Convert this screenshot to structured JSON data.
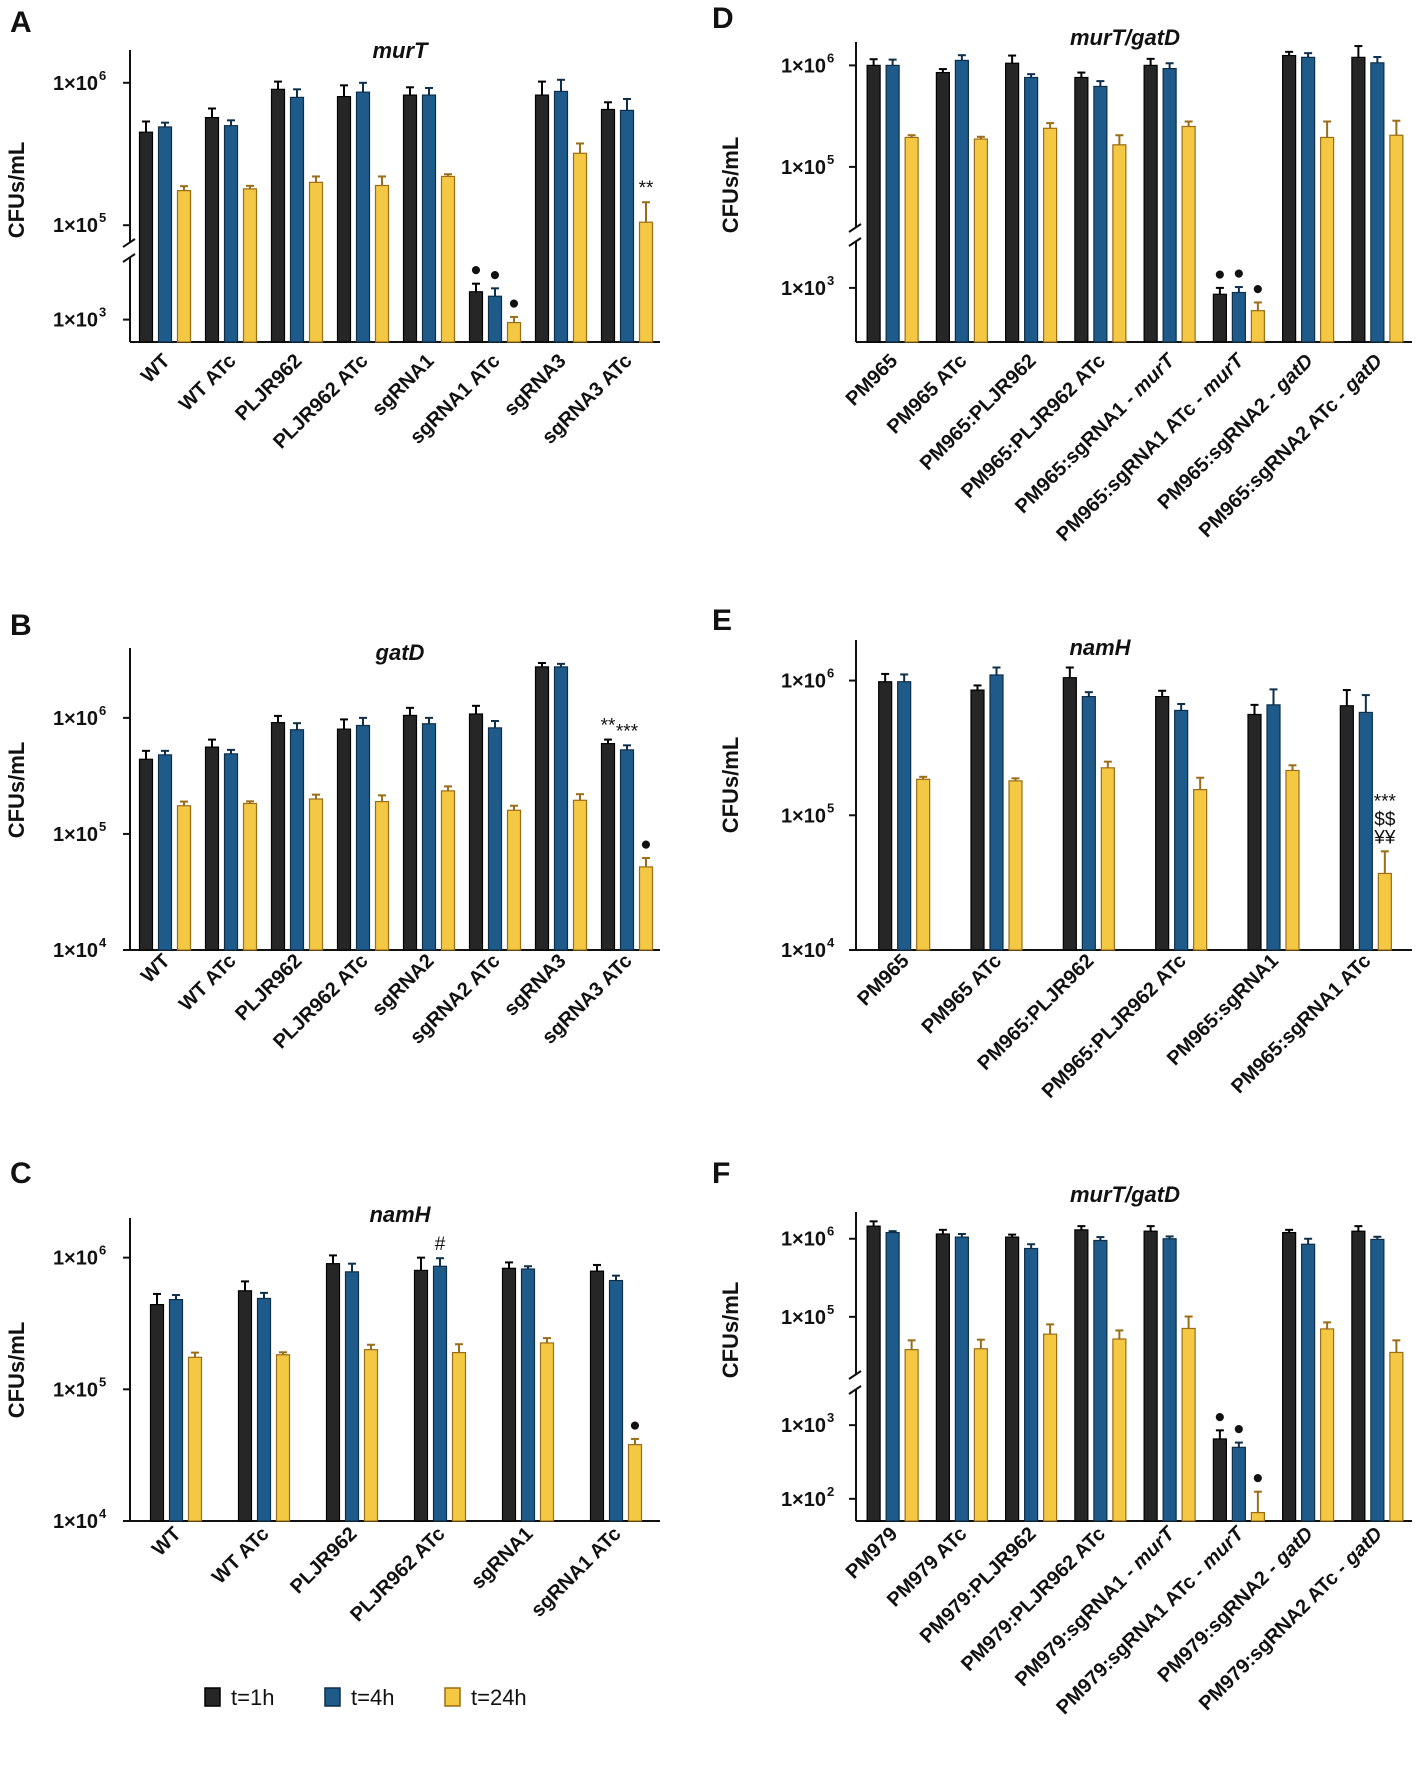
{
  "colors": {
    "t1": "#262626",
    "t4": "#1f5b8a",
    "t24": "#f4c843",
    "t24_edge": "#9a6d16",
    "axis": "#111111"
  },
  "legend": [
    {
      "label": "t=1h",
      "color": "#262626"
    },
    {
      "label": "t=4h",
      "color": "#1f5b8a"
    },
    {
      "label": "t=24h",
      "color": "#f4c843"
    }
  ],
  "series_names": [
    "t=1h",
    "t=4h",
    "t=24h"
  ],
  "chart_data": [
    {
      "letter": "A",
      "type": "bar",
      "title": "murT",
      "italic_title": true,
      "ylabel": "CFUs/mL",
      "scale": "log",
      "broken_axis": true,
      "ticks": [
        {
          "base": "1×10",
          "exp": "6",
          "v": 1000000
        },
        {
          "base": "1×10",
          "exp": "5",
          "v": 100000
        },
        {
          "base": "1×10",
          "exp": "3",
          "v": 1000
        }
      ],
      "categories": [
        {
          "label": "WT"
        },
        {
          "label": "WT ATc"
        },
        {
          "label": "PLJR962"
        },
        {
          "label": "PLJR962 ATc"
        },
        {
          "label": "sgRNA1"
        },
        {
          "label": "sgRNA1 ATc"
        },
        {
          "label": "sgRNA3"
        },
        {
          "label": "sgRNA3 ATc"
        }
      ],
      "series": [
        {
          "name": "t=1h",
          "values": [
            450000,
            570000,
            900000,
            800000,
            820000,
            2700,
            820000,
            650000
          ],
          "errors": [
            85000,
            90000,
            120000,
            160000,
            110000,
            900,
            200000,
            80000
          ]
        },
        {
          "name": "t=4h",
          "values": [
            490000,
            500000,
            790000,
            860000,
            820000,
            2300,
            870000,
            640000
          ],
          "errors": [
            35000,
            45000,
            110000,
            140000,
            100000,
            750,
            180000,
            130000
          ]
        },
        {
          "name": "t=24h",
          "values": [
            175000,
            180000,
            200000,
            190000,
            220000,
            900,
            320000,
            105000
          ],
          "errors": [
            13000,
            9000,
            20000,
            30000,
            8000,
            200,
            55000,
            40000
          ]
        }
      ],
      "annotations": [
        {
          "cat": 5,
          "series": 0,
          "text": "●"
        },
        {
          "cat": 5,
          "series": 1,
          "text": "●"
        },
        {
          "cat": 5,
          "series": 2,
          "text": "●"
        },
        {
          "cat": 7,
          "series": 2,
          "text": "**"
        }
      ]
    },
    {
      "letter": "B",
      "type": "bar",
      "title": "gatD",
      "italic_title": true,
      "ylabel": "CFUs/mL",
      "scale": "log",
      "broken_axis": false,
      "ylim": [
        10000,
        4000000
      ],
      "ticks": [
        {
          "base": "1×10",
          "exp": "6",
          "v": 1000000
        },
        {
          "base": "1×10",
          "exp": "5",
          "v": 100000
        },
        {
          "base": "1×10",
          "exp": "4",
          "v": 10000
        }
      ],
      "categories": [
        {
          "label": "WT"
        },
        {
          "label": "WT ATc"
        },
        {
          "label": "PLJR962"
        },
        {
          "label": "PLJR962 ATc"
        },
        {
          "label": "sgRNA2"
        },
        {
          "label": "sgRNA2 ATc"
        },
        {
          "label": "sgRNA3"
        },
        {
          "label": "sgRNA3 ATc"
        }
      ],
      "series": [
        {
          "name": "t=1h",
          "values": [
            440000,
            560000,
            910000,
            800000,
            1050000,
            1080000,
            2750000,
            600000
          ],
          "errors": [
            80000,
            90000,
            130000,
            170000,
            170000,
            190000,
            220000,
            50000
          ]
        },
        {
          "name": "t=4h",
          "values": [
            480000,
            490000,
            790000,
            860000,
            890000,
            820000,
            2750000,
            530000
          ],
          "errors": [
            40000,
            40000,
            110000,
            140000,
            110000,
            120000,
            170000,
            50000
          ]
        },
        {
          "name": "t=24h",
          "values": [
            175000,
            183000,
            200000,
            190000,
            235000,
            160000,
            195000,
            52000
          ],
          "errors": [
            15000,
            8000,
            18000,
            25000,
            22000,
            15000,
            25000,
            10000
          ]
        }
      ],
      "annotations": [
        {
          "cat": 7,
          "series": 0,
          "text": "**"
        },
        {
          "cat": 7,
          "series": 1,
          "text": "***"
        },
        {
          "cat": 7,
          "series": 2,
          "text": "●"
        }
      ]
    },
    {
      "letter": "C",
      "type": "bar",
      "title": "namH",
      "italic_title": true,
      "ylabel": "CFUs/mL",
      "scale": "log",
      "broken_axis": false,
      "ylim": [
        10000,
        2000000
      ],
      "ticks": [
        {
          "base": "1×10",
          "exp": "6",
          "v": 1000000
        },
        {
          "base": "1×10",
          "exp": "5",
          "v": 100000
        },
        {
          "base": "1×10",
          "exp": "4",
          "v": 10000
        }
      ],
      "categories": [
        {
          "label": "WT"
        },
        {
          "label": "WT ATc"
        },
        {
          "label": "PLJR962"
        },
        {
          "label": "PLJR962 ATc"
        },
        {
          "label": "sgRNA1"
        },
        {
          "label": "sgRNA1 ATc"
        }
      ],
      "series": [
        {
          "name": "t=1h",
          "values": [
            440000,
            560000,
            900000,
            800000,
            830000,
            790000
          ],
          "errors": [
            90000,
            100000,
            140000,
            200000,
            90000,
            90000
          ]
        },
        {
          "name": "t=4h",
          "values": [
            480000,
            490000,
            780000,
            860000,
            820000,
            670000
          ],
          "errors": [
            40000,
            50000,
            120000,
            130000,
            40000,
            60000
          ]
        },
        {
          "name": "t=24h",
          "values": [
            175000,
            183000,
            200000,
            190000,
            225000,
            38000
          ],
          "errors": [
            15000,
            8000,
            18000,
            30000,
            20000,
            4000
          ]
        }
      ],
      "annotations": [
        {
          "cat": 3,
          "series": 1,
          "text": "#"
        },
        {
          "cat": 5,
          "series": 2,
          "text": "●"
        }
      ]
    },
    {
      "letter": "D",
      "type": "bar",
      "title": "murT/gatD",
      "italic_title": true,
      "ylabel": "CFUs/mL",
      "scale": "log",
      "broken_axis": true,
      "ticks": [
        {
          "base": "1×10",
          "exp": "6",
          "v": 1000000
        },
        {
          "base": "1×10",
          "exp": "5",
          "v": 100000
        },
        {
          "base": "1×10",
          "exp": "3",
          "v": 1000
        }
      ],
      "categories": [
        {
          "label": "PM965",
          "italic": ""
        },
        {
          "label": "PM965 ATc",
          "italic": ""
        },
        {
          "label": "PM965:PLJR962",
          "italic": ""
        },
        {
          "label": "PM965:PLJR962 ATc",
          "italic": ""
        },
        {
          "label": "PM965:sgRNA1 - ",
          "italic": "murT"
        },
        {
          "label": "PM965:sgRNA1 ATc - ",
          "italic": "murT"
        },
        {
          "label": "PM965:sgRNA2 - ",
          "italic": "gatD"
        },
        {
          "label": "PM965:sgRNA2 ATc - ",
          "italic": "gatD"
        }
      ],
      "series": [
        {
          "name": "t=1h",
          "values": [
            1000000,
            850000,
            1050000,
            760000,
            1000000,
            800,
            1250000,
            1200000
          ],
          "errors": [
            150000,
            70000,
            200000,
            90000,
            160000,
            200,
            110000,
            350000
          ]
        },
        {
          "name": "t=4h",
          "values": [
            1000000,
            1120000,
            760000,
            620000,
            930000,
            850,
            1200000,
            1060000
          ],
          "errors": [
            140000,
            140000,
            60000,
            80000,
            120000,
            180,
            120000,
            150000
          ]
        },
        {
          "name": "t=24h",
          "values": [
            195000,
            188000,
            240000,
            165000,
            250000,
            450,
            195000,
            205000
          ],
          "errors": [
            10000,
            10000,
            30000,
            40000,
            30000,
            150,
            85000,
            80000
          ]
        }
      ],
      "annotations": [
        {
          "cat": 5,
          "series": 0,
          "text": "●"
        },
        {
          "cat": 5,
          "series": 1,
          "text": "●"
        },
        {
          "cat": 5,
          "series": 2,
          "text": "●"
        }
      ]
    },
    {
      "letter": "E",
      "type": "bar",
      "title": "namH",
      "italic_title": true,
      "ylabel": "CFUs/mL",
      "scale": "log",
      "broken_axis": false,
      "ylim": [
        10000,
        2000000
      ],
      "ticks": [
        {
          "base": "1×10",
          "exp": "6",
          "v": 1000000
        },
        {
          "base": "1×10",
          "exp": "5",
          "v": 100000
        },
        {
          "base": "1×10",
          "exp": "4",
          "v": 10000
        }
      ],
      "categories": [
        {
          "label": "PM965"
        },
        {
          "label": "PM965 ATc"
        },
        {
          "label": "PM965:PLJR962"
        },
        {
          "label": "PM965:PLJR962 ATc"
        },
        {
          "label": "PM965:sgRNA1"
        },
        {
          "label": "PM965:sgRNA1 ATc"
        }
      ],
      "series": [
        {
          "name": "t=1h",
          "values": [
            980000,
            850000,
            1050000,
            760000,
            560000,
            650000
          ],
          "errors": [
            140000,
            70000,
            200000,
            80000,
            100000,
            200000
          ]
        },
        {
          "name": "t=4h",
          "values": [
            980000,
            1100000,
            760000,
            600000,
            660000,
            580000
          ],
          "errors": [
            130000,
            150000,
            60000,
            70000,
            200000,
            200000
          ]
        },
        {
          "name": "t=24h",
          "values": [
            185000,
            180000,
            225000,
            155000,
            215000,
            37000
          ],
          "errors": [
            8000,
            8000,
            25000,
            35000,
            20000,
            17000
          ]
        }
      ],
      "annotations": [
        {
          "cat": 5,
          "series": 2,
          "text": "***",
          "stack": 3
        },
        {
          "cat": 5,
          "series": 2,
          "text": "$$",
          "stack": 2
        },
        {
          "cat": 5,
          "series": 2,
          "text": "¥¥",
          "stack": 1
        }
      ]
    },
    {
      "letter": "F",
      "type": "bar",
      "title": "murT/gatD",
      "italic_title": true,
      "ylabel": "CFUs/mL",
      "scale": "log",
      "broken_axis": true,
      "ticks": [
        {
          "base": "1×10",
          "exp": "6",
          "v": 1000000
        },
        {
          "base": "1×10",
          "exp": "5",
          "v": 100000
        },
        {
          "base": "1×10",
          "exp": "3",
          "v": 1000
        },
        {
          "base": "1×10",
          "exp": "2",
          "v": 100
        }
      ],
      "categories": [
        {
          "label": "PM979",
          "italic": ""
        },
        {
          "label": "PM979 ATc",
          "italic": ""
        },
        {
          "label": "PM979:PLJR962",
          "italic": ""
        },
        {
          "label": "PM979:PLJR962 ATc",
          "italic": ""
        },
        {
          "label": "PM979:sgRNA1 - ",
          "italic": "murT"
        },
        {
          "label": "PM979:sgRNA1 ATc - ",
          "italic": "murT"
        },
        {
          "label": "PM979:sgRNA2 - ",
          "italic": "gatD"
        },
        {
          "label": "PM979:sgRNA2 ATc - ",
          "italic": "gatD"
        }
      ],
      "series": [
        {
          "name": "t=1h",
          "values": [
            1450000,
            1150000,
            1050000,
            1300000,
            1250000,
            650,
            1200000,
            1250000
          ],
          "errors": [
            220000,
            150000,
            80000,
            150000,
            200000,
            200,
            100000,
            200000
          ]
        },
        {
          "name": "t=4h",
          "values": [
            1200000,
            1050000,
            750000,
            950000,
            1000000,
            500,
            850000,
            980000
          ],
          "errors": [
            50000,
            100000,
            100000,
            100000,
            70000,
            80,
            150000,
            80000
          ]
        },
        {
          "name": "t=24h",
          "values": [
            38000,
            39000,
            60000,
            52000,
            71000,
            65,
            70000,
            35000
          ],
          "errors": [
            12000,
            12000,
            20000,
            15000,
            30000,
            60,
            15000,
            15000
          ]
        }
      ],
      "annotations": [
        {
          "cat": 5,
          "series": 0,
          "text": "●"
        },
        {
          "cat": 5,
          "series": 1,
          "text": "●"
        },
        {
          "cat": 5,
          "series": 2,
          "text": "●"
        }
      ]
    }
  ]
}
